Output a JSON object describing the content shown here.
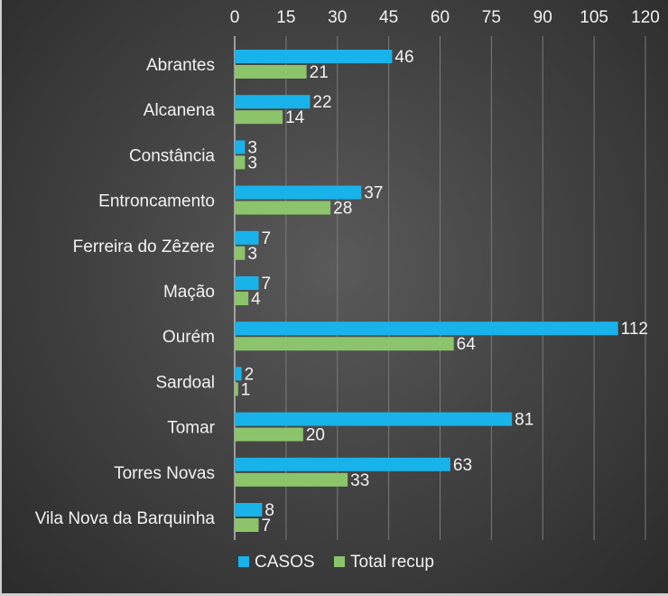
{
  "chart_data": {
    "type": "bar",
    "orientation": "horizontal",
    "categories": [
      "Abrantes",
      "Alcanena",
      "Constância",
      "Entroncamento",
      "Ferreira do Zêzere",
      "Mação",
      "Ourém",
      "Sardoal",
      "Tomar",
      "Torres Novas",
      "Vila Nova da Barquinha"
    ],
    "series": [
      {
        "name": "CASOS",
        "color": "#18b3ea",
        "values": [
          46,
          22,
          3,
          37,
          7,
          7,
          112,
          2,
          81,
          63,
          8
        ]
      },
      {
        "name": "Total recup",
        "color": "#8bc46a",
        "values": [
          21,
          14,
          3,
          28,
          3,
          4,
          64,
          1,
          20,
          33,
          7
        ]
      }
    ],
    "xlim": [
      0,
      120
    ],
    "xticks": [
      "0",
      "15",
      "30",
      "45",
      "60",
      "75",
      "90",
      "105",
      "120"
    ],
    "x_axis_position": "top",
    "grid": true,
    "legend_position": "bottom",
    "title": "",
    "xlabel": "",
    "ylabel": ""
  }
}
